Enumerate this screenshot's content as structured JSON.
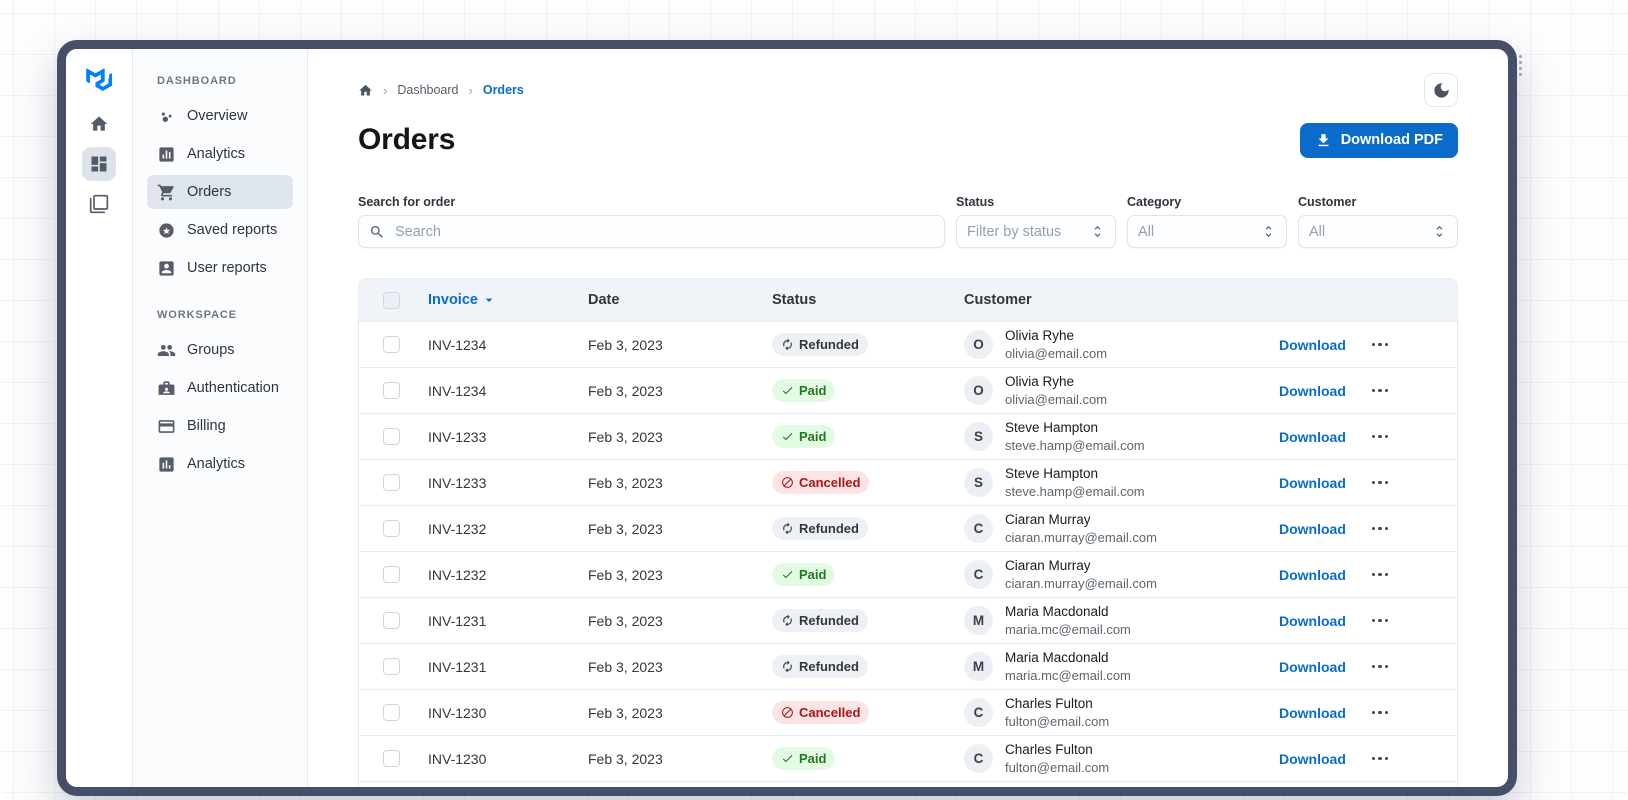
{
  "sidebar": {
    "sections": [
      {
        "label": "DASHBOARD",
        "items": [
          {
            "label": "Overview",
            "icon": "bubble-chart-icon",
            "selected": false
          },
          {
            "label": "Analytics",
            "icon": "bar-chart-icon",
            "selected": false
          },
          {
            "label": "Orders",
            "icon": "cart-icon",
            "selected": true
          },
          {
            "label": "Saved reports",
            "icon": "star-circle-icon",
            "selected": false
          },
          {
            "label": "User reports",
            "icon": "person-card-icon",
            "selected": false
          }
        ]
      },
      {
        "label": "WORKSPACE",
        "items": [
          {
            "label": "Groups",
            "icon": "people-icon",
            "selected": false
          },
          {
            "label": "Authentication",
            "icon": "badge-icon",
            "selected": false
          },
          {
            "label": "Billing",
            "icon": "credit-card-icon",
            "selected": false
          },
          {
            "label": "Analytics",
            "icon": "chart-icon",
            "selected": false
          }
        ]
      }
    ]
  },
  "breadcrumb": {
    "items": [
      "Dashboard",
      "Orders"
    ]
  },
  "page": {
    "title": "Orders"
  },
  "toolbar": {
    "download_pdf_label": "Download PDF"
  },
  "filters": {
    "search": {
      "label": "Search for order",
      "placeholder": "Search"
    },
    "status": {
      "label": "Status",
      "value": "Filter by status"
    },
    "category": {
      "label": "Category",
      "value": "All"
    },
    "customer": {
      "label": "Customer",
      "value": "All"
    }
  },
  "table": {
    "columns": {
      "invoice": "Invoice",
      "date": "Date",
      "status": "Status",
      "customer": "Customer"
    },
    "action_label": "Download",
    "status_styles": {
      "Paid": {
        "bg": "#E3FBE3",
        "color": "#1F7A1F",
        "icon": "check"
      },
      "Refunded": {
        "bg": "#EDF1F6",
        "color": "#32383E",
        "icon": "refresh"
      },
      "Cancelled": {
        "bg": "#FCE4E4",
        "color": "#A51818",
        "icon": "block"
      }
    },
    "rows": [
      {
        "invoice": "INV-1234",
        "date": "Feb 3, 2023",
        "status": "Refunded",
        "initial": "O",
        "name": "Olivia Ryhe",
        "email": "olivia@email.com"
      },
      {
        "invoice": "INV-1234",
        "date": "Feb 3, 2023",
        "status": "Paid",
        "initial": "O",
        "name": "Olivia Ryhe",
        "email": "olivia@email.com"
      },
      {
        "invoice": "INV-1233",
        "date": "Feb 3, 2023",
        "status": "Paid",
        "initial": "S",
        "name": "Steve Hampton",
        "email": "steve.hamp@email.com"
      },
      {
        "invoice": "INV-1233",
        "date": "Feb 3, 2023",
        "status": "Cancelled",
        "initial": "S",
        "name": "Steve Hampton",
        "email": "steve.hamp@email.com"
      },
      {
        "invoice": "INV-1232",
        "date": "Feb 3, 2023",
        "status": "Refunded",
        "initial": "C",
        "name": "Ciaran Murray",
        "email": "ciaran.murray@email.com"
      },
      {
        "invoice": "INV-1232",
        "date": "Feb 3, 2023",
        "status": "Paid",
        "initial": "C",
        "name": "Ciaran Murray",
        "email": "ciaran.murray@email.com"
      },
      {
        "invoice": "INV-1231",
        "date": "Feb 3, 2023",
        "status": "Refunded",
        "initial": "M",
        "name": "Maria Macdonald",
        "email": "maria.mc@email.com"
      },
      {
        "invoice": "INV-1231",
        "date": "Feb 3, 2023",
        "status": "Refunded",
        "initial": "M",
        "name": "Maria Macdonald",
        "email": "maria.mc@email.com"
      },
      {
        "invoice": "INV-1230",
        "date": "Feb 3, 2023",
        "status": "Cancelled",
        "initial": "C",
        "name": "Charles Fulton",
        "email": "fulton@email.com"
      },
      {
        "invoice": "INV-1230",
        "date": "Feb 3, 2023",
        "status": "Paid",
        "initial": "C",
        "name": "Charles Fulton",
        "email": "fulton@email.com"
      }
    ],
    "partial_row_visible": true
  },
  "theme": {
    "accent": "#0B6BCB",
    "frame": "#474E68",
    "selected_nav_bg": "#DFE5EC",
    "table_header_bg": "#F0F4F8",
    "logo_blue": "#007FFF"
  }
}
